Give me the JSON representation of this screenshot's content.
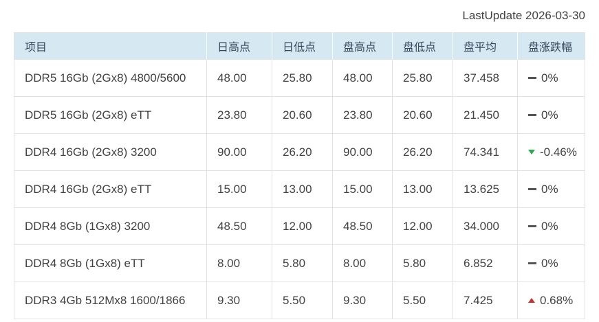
{
  "page": {
    "last_update": "LastUpdate 2026-03-30"
  },
  "colors": {
    "header_bg": "#d6e8f2",
    "header_text": "#33475b",
    "text_main": "#424242",
    "border": "#e2e2e2",
    "up_red": "#c9302c",
    "down_green": "#2ba84c",
    "flat_dash": "#555555"
  },
  "table": {
    "columns": [
      "项目",
      "日高点",
      "日低点",
      "盘高点",
      "盘低点",
      "盘平均",
      "盘涨跌幅"
    ],
    "rows": [
      {
        "cells": [
          "DDR5 16Gb (2Gx8) 4800/5600",
          "48.00",
          "25.80",
          "48.00",
          "25.80",
          "37.458"
        ],
        "trend": "flat",
        "change": "0%"
      },
      {
        "cells": [
          "DDR5 16Gb (2Gx8) eTT",
          "23.80",
          "20.60",
          "23.80",
          "20.60",
          "21.450"
        ],
        "trend": "flat",
        "change": "0%"
      },
      {
        "cells": [
          "DDR4 16Gb (2Gx8) 3200",
          "90.00",
          "26.20",
          "90.00",
          "26.20",
          "74.341"
        ],
        "trend": "down",
        "change": "-0.46%"
      },
      {
        "cells": [
          "DDR4 16Gb (2Gx8) eTT",
          "15.00",
          "13.00",
          "15.00",
          "13.00",
          "13.625"
        ],
        "trend": "flat",
        "change": "0%"
      },
      {
        "cells": [
          "DDR4 8Gb (1Gx8) 3200",
          "48.50",
          "12.00",
          "48.50",
          "12.00",
          "34.000"
        ],
        "trend": "flat",
        "change": "0%"
      },
      {
        "cells": [
          "DDR4 8Gb (1Gx8) eTT",
          "8.00",
          "5.80",
          "8.00",
          "5.80",
          "6.852"
        ],
        "trend": "flat",
        "change": "0%"
      },
      {
        "cells": [
          "DDR3 4Gb 512Mx8 1600/1866",
          "9.30",
          "5.50",
          "9.30",
          "5.50",
          "7.425"
        ],
        "trend": "up",
        "change": "0.68%"
      }
    ]
  }
}
